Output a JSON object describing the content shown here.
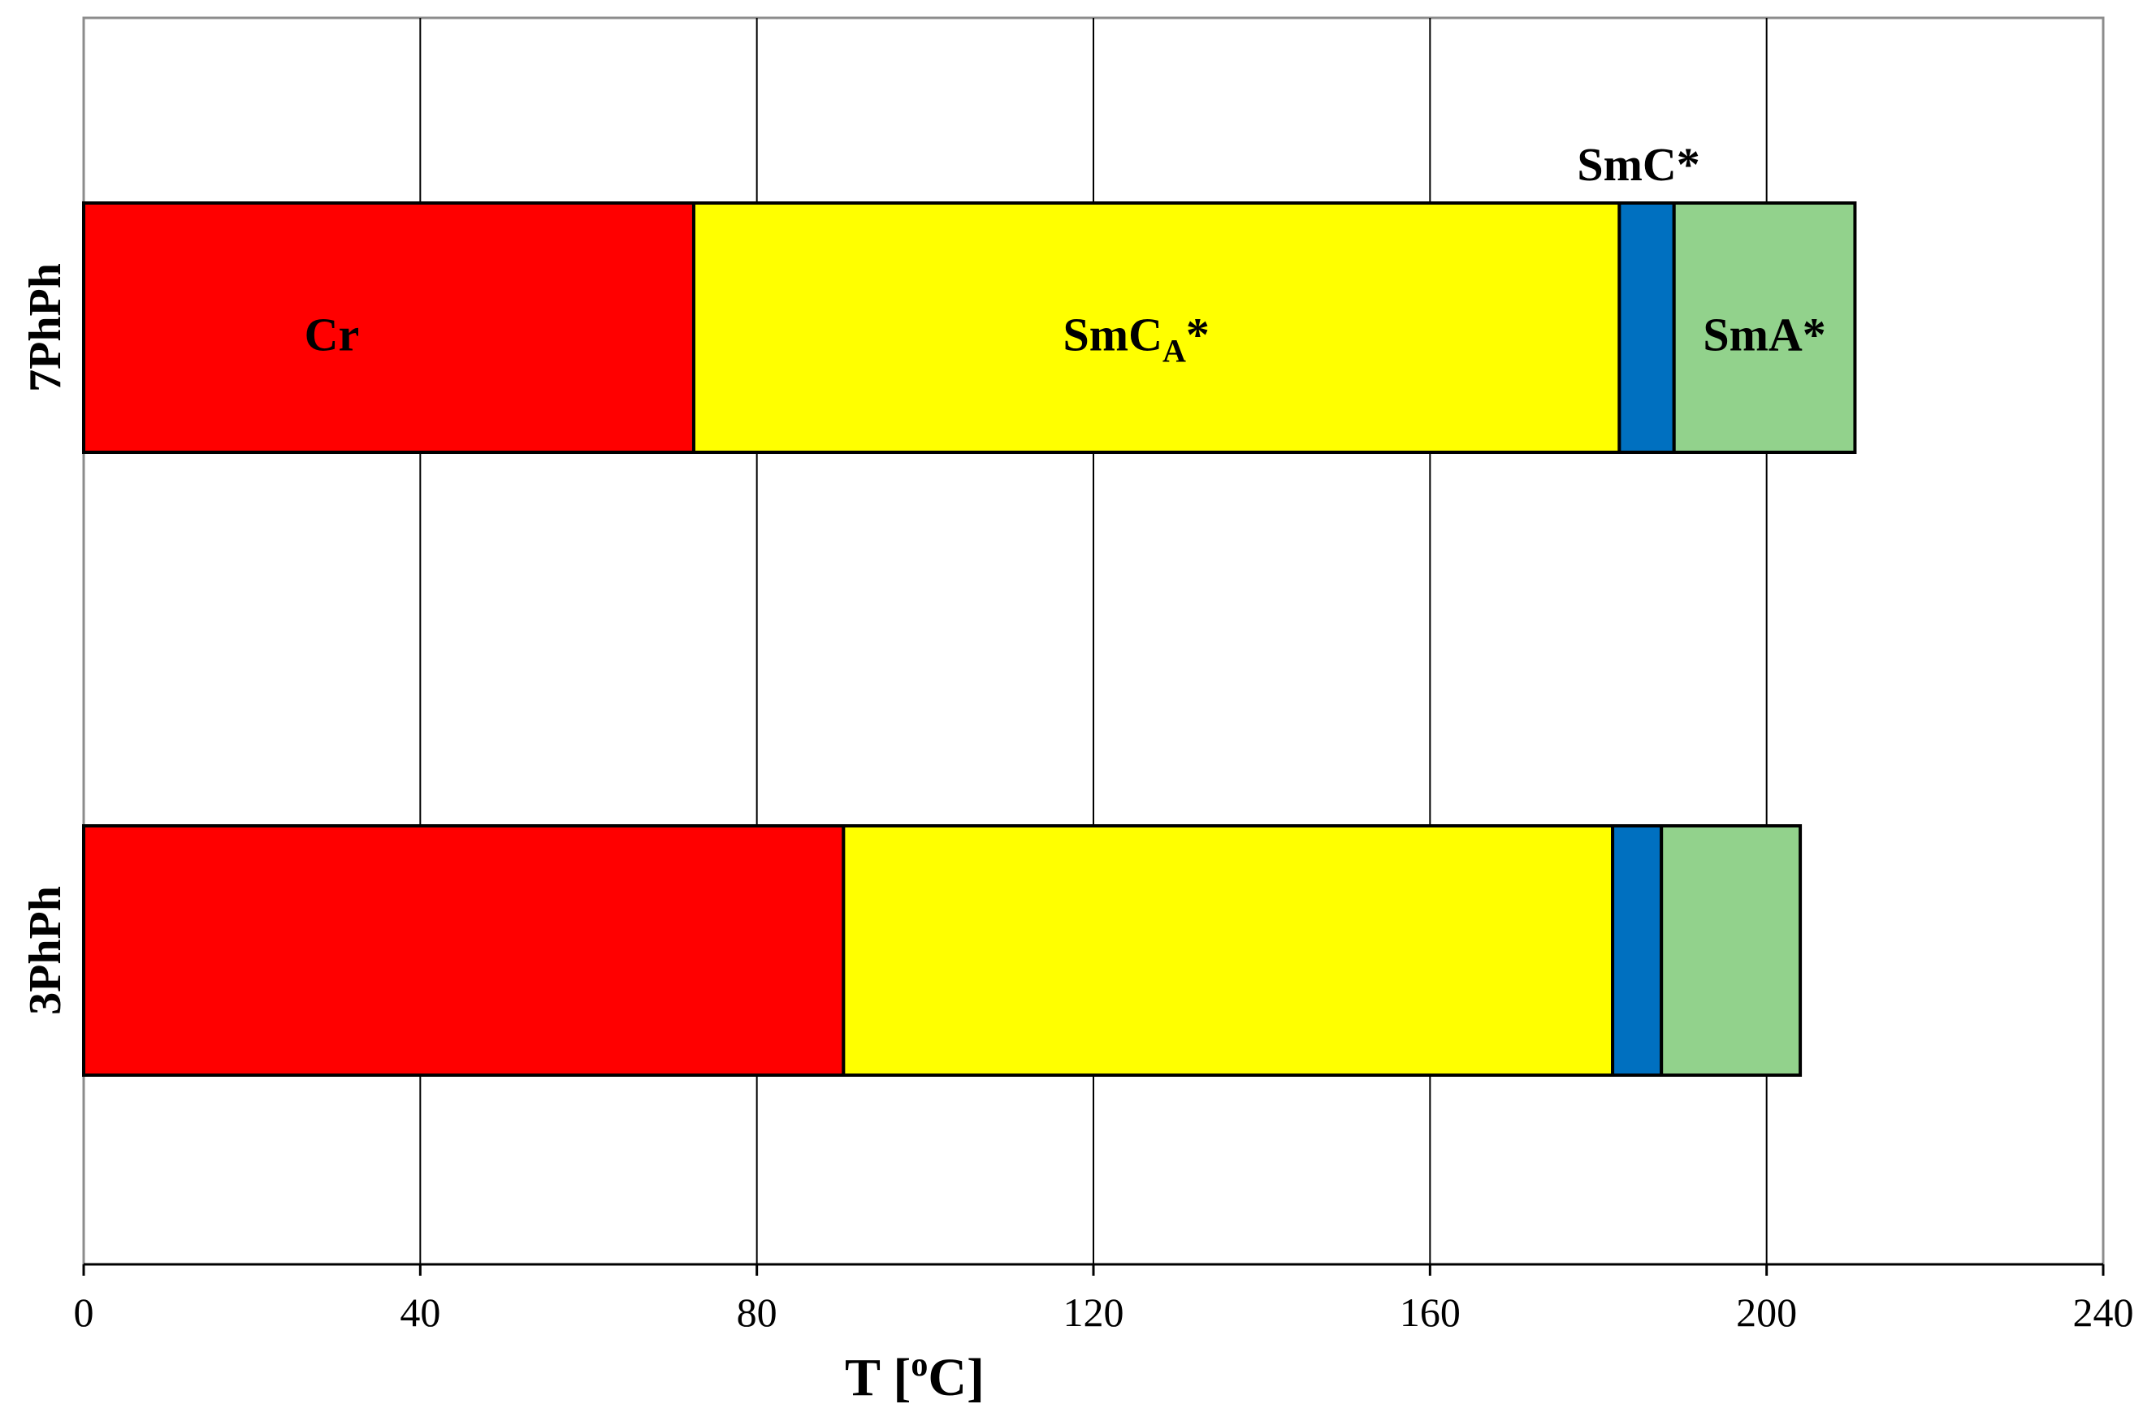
{
  "chart_data": {
    "type": "bar",
    "orientation": "horizontal",
    "stacked": true,
    "xlabel_parts": {
      "before": "T [",
      "sup": "o",
      "after": "C]"
    },
    "ylabel": "",
    "xlim": [
      0,
      240
    ],
    "x_ticks": [
      0,
      40,
      80,
      120,
      160,
      200,
      240
    ],
    "grid": "vertical",
    "categories": [
      "7PhPh",
      "3PhPh"
    ],
    "phases": [
      {
        "key": "cr",
        "color": "#ff0000"
      },
      {
        "key": "smca",
        "color": "#ffff00"
      },
      {
        "key": "smc",
        "color": "#0070c0"
      },
      {
        "key": "sma",
        "color": "#92d28c"
      }
    ],
    "rows": [
      {
        "category": "7PhPh",
        "transitions": [
          0,
          72.5,
          182.5,
          189,
          210.5
        ]
      },
      {
        "category": "3PhPh",
        "transitions": [
          0,
          90.3,
          181.7,
          187.5,
          204
        ]
      }
    ],
    "annotations": {
      "cr": "Cr",
      "smca_main": "SmC",
      "smca_sub": "A",
      "smca_star": "*",
      "smc": "SmC*",
      "sma": "SmA*"
    }
  }
}
